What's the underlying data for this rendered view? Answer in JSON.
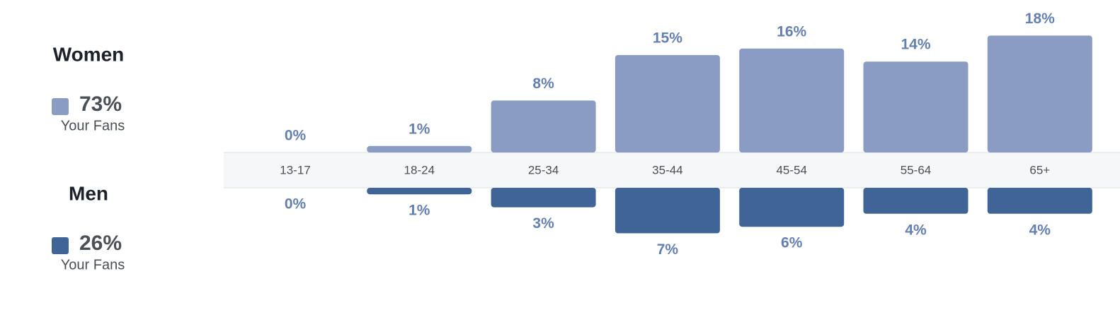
{
  "chart_data": {
    "type": "bar",
    "categories": [
      "13-17",
      "18-24",
      "25-34",
      "35-44",
      "45-54",
      "55-64",
      "65+"
    ],
    "series": [
      {
        "name": "Women",
        "color": "#8a9cc2",
        "values": [
          0,
          1,
          8,
          15,
          16,
          14,
          18
        ],
        "value_labels": [
          "0%",
          "1%",
          "8%",
          "15%",
          "16%",
          "14%",
          "18%"
        ],
        "total": {
          "value": 73,
          "label": "73%"
        },
        "caption": "Your Fans"
      },
      {
        "name": "Men",
        "color": "#3f6496",
        "values": [
          0,
          1,
          3,
          7,
          6,
          4,
          4
        ],
        "value_labels": [
          "0%",
          "1%",
          "3%",
          "7%",
          "6%",
          "4%",
          "4%"
        ],
        "total": {
          "value": 26,
          "label": "26%"
        },
        "caption": "Your Fans"
      }
    ]
  }
}
